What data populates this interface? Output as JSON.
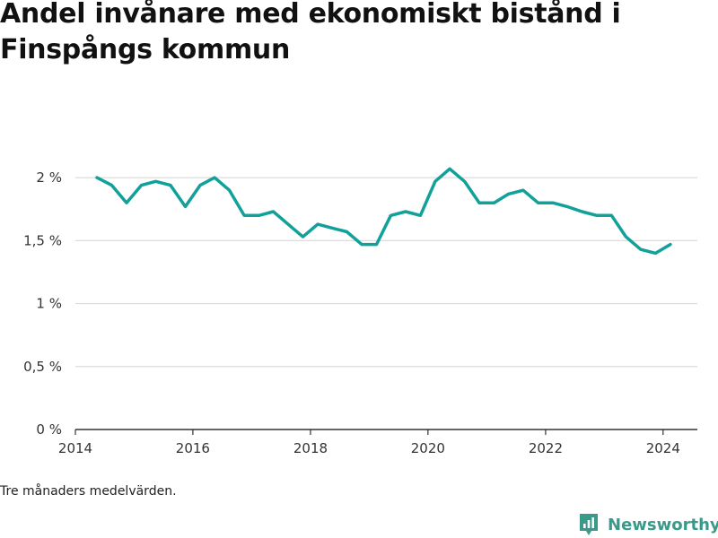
{
  "title": "Andel invånare med ekonomiskt bistånd i Finspångs kommun",
  "note": "Tre månaders medelvärden.",
  "brand": {
    "name": "Newsworthy",
    "icon": "newsworthy-logo-icon",
    "color": "#3a9a8a"
  },
  "chart_data": {
    "type": "line",
    "title": "Andel invånare med ekonomiskt bistånd i Finspångs kommun",
    "xlabel": "",
    "ylabel": "",
    "x_ticks": [
      "2014",
      "2016",
      "2018",
      "2020",
      "2022",
      "2024"
    ],
    "y_ticks": [
      {
        "value": 0,
        "label": "0 %"
      },
      {
        "value": 0.5,
        "label": "0,5 %"
      },
      {
        "value": 1,
        "label": "1 %"
      },
      {
        "value": 1.5,
        "label": "1,5 %"
      },
      {
        "value": 2,
        "label": "2 %"
      }
    ],
    "xlim": [
      "2014-01-01",
      "2024-08-01"
    ],
    "ylim": [
      0,
      2.3
    ],
    "grid": true,
    "line_color": "#12a19a",
    "series": [
      {
        "x": [
          "2014-05",
          "2014-08",
          "2014-11",
          "2015-02",
          "2015-05",
          "2015-08",
          "2015-11",
          "2016-02",
          "2016-05",
          "2016-08",
          "2016-11",
          "2017-02",
          "2017-05",
          "2017-08",
          "2017-11",
          "2018-02",
          "2018-05",
          "2018-08",
          "2018-11",
          "2019-02",
          "2019-05",
          "2019-08",
          "2019-11",
          "2020-02",
          "2020-05",
          "2020-08",
          "2020-11",
          "2021-02",
          "2021-05",
          "2021-08",
          "2021-11",
          "2022-02",
          "2022-05",
          "2022-08",
          "2022-11",
          "2023-02",
          "2023-05",
          "2023-08",
          "2023-11",
          "2024-02"
        ],
        "values": [
          2.0,
          1.94,
          1.8,
          1.94,
          1.97,
          1.94,
          1.77,
          1.94,
          2.0,
          1.9,
          1.7,
          1.7,
          1.73,
          1.63,
          1.53,
          1.63,
          1.6,
          1.57,
          1.47,
          1.47,
          1.7,
          1.73,
          1.7,
          1.97,
          2.07,
          1.97,
          1.8,
          1.8,
          1.87,
          1.9,
          1.8,
          1.8,
          1.77,
          1.73,
          1.7,
          1.7,
          1.53,
          1.43,
          1.4,
          1.47
        ]
      }
    ]
  }
}
